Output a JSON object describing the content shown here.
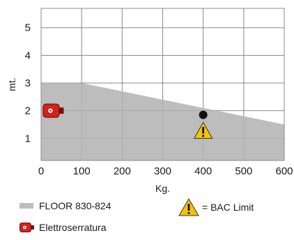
{
  "chart_data": {
    "type": "area",
    "xlabel": "Kg.",
    "ylabel": "mt.",
    "xlim": [
      0,
      600
    ],
    "ylim": [
      0.2,
      5.7
    ],
    "x_ticks": [
      0,
      100,
      200,
      300,
      400,
      500,
      600
    ],
    "y_ticks": [
      1,
      2,
      3,
      4,
      5
    ],
    "grid": true,
    "series": [
      {
        "name": "FLOOR 830-824",
        "color": "#bdbdbd",
        "points": [
          [
            0,
            3.0
          ],
          [
            100,
            3.0
          ],
          [
            600,
            1.5
          ]
        ]
      }
    ],
    "markers": [
      {
        "kind": "elettroserratura",
        "icon": "electric-lock-icon",
        "x": 30,
        "y": 2.0,
        "color": "#d0231f"
      },
      {
        "kind": "bac-limit",
        "icon": "warning-triangle-icon",
        "x": 400,
        "y": 1.3,
        "color": "#f5c400"
      },
      {
        "kind": "point",
        "icon": "dot-marker",
        "x": 400,
        "y": 1.85,
        "color": "#111111"
      }
    ],
    "legend": [
      {
        "label": "FLOOR 830-824",
        "icon": "grey-swatch",
        "color": "#bdbdbd"
      },
      {
        "label": "= BAC Limit",
        "icon": "warning-triangle-icon",
        "color": "#f5c400"
      },
      {
        "label": "Elettroserratura",
        "icon": "electric-lock-icon",
        "color": "#d0231f"
      }
    ]
  }
}
